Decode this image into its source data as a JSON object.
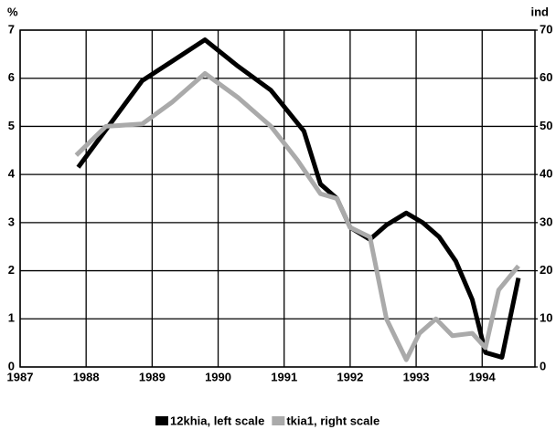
{
  "chart_data": {
    "type": "line",
    "y_unit_label": "%",
    "y2_unit_label": "ind",
    "xlim": [
      1987,
      1994.8
    ],
    "xticks": [
      1987,
      1988,
      1989,
      1990,
      1991,
      1992,
      1993,
      1994
    ],
    "ylim": [
      0,
      7
    ],
    "yticks": [
      0,
      1,
      2,
      3,
      4,
      5,
      6,
      7
    ],
    "y2lim": [
      0,
      70
    ],
    "y2ticks": [
      0,
      10,
      20,
      30,
      40,
      50,
      60,
      70
    ],
    "grid": true,
    "legend": "bottom",
    "series": [
      {
        "name": "12khia, left scale",
        "color": "#000000",
        "axis": "y",
        "x": [
          1987.88,
          1988.85,
          1989.3,
          1989.8,
          1990.3,
          1990.8,
          1991.3,
          1991.55,
          1991.8,
          1992.0,
          1992.3,
          1992.55,
          1992.85,
          1993.1,
          1993.35,
          1993.6,
          1993.85,
          1994.05,
          1994.3,
          1994.55
        ],
        "values": [
          4.15,
          5.95,
          6.35,
          6.8,
          6.25,
          5.75,
          4.9,
          3.8,
          3.5,
          2.9,
          2.65,
          2.95,
          3.2,
          3.0,
          2.7,
          2.2,
          1.4,
          0.3,
          0.2,
          1.85
        ]
      },
      {
        "name": "tkia1, right scale",
        "color": "#aaaaaa",
        "axis": "y2",
        "x": [
          1987.85,
          1988.3,
          1988.85,
          1989.3,
          1989.8,
          1990.3,
          1990.8,
          1991.2,
          1991.55,
          1991.8,
          1992.0,
          1992.3,
          1992.55,
          1992.85,
          1993.05,
          1993.3,
          1993.55,
          1993.85,
          1994.05,
          1994.25,
          1994.55
        ],
        "values": [
          44,
          50,
          50.5,
          55,
          61,
          56,
          50,
          43,
          36,
          35,
          29,
          27,
          10,
          1.5,
          7,
          10,
          6.5,
          7,
          4,
          16,
          21
        ]
      }
    ]
  }
}
